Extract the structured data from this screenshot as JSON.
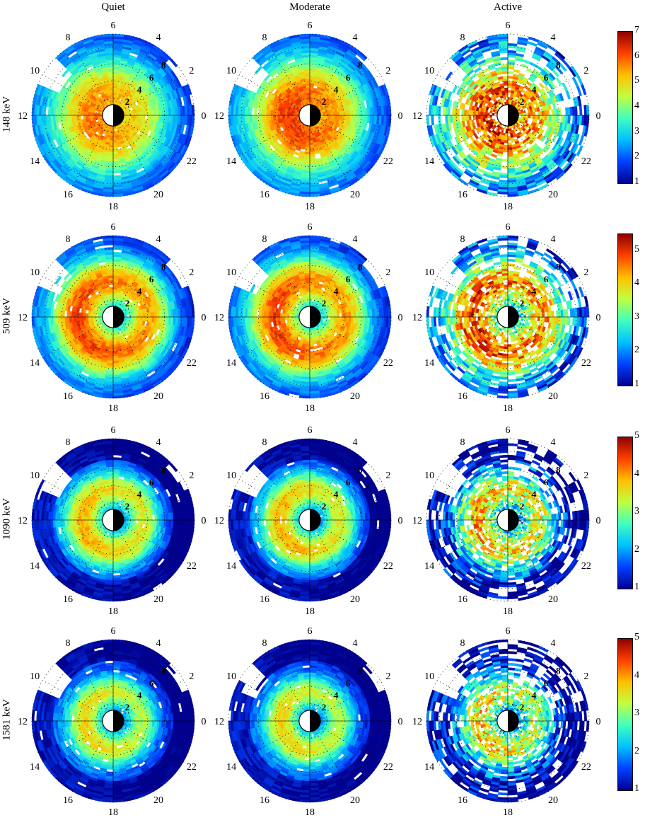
{
  "chart_data": {
    "type": "heatmap",
    "columns": [
      "Quiet",
      "Moderate",
      "Active"
    ],
    "rows": [
      "148 keV",
      "509 keV",
      "1090 keV",
      "1581 keV"
    ],
    "mlt_labels": [
      "6",
      "4",
      "2",
      "0",
      "22",
      "20",
      "18",
      "16",
      "14",
      "12",
      "10",
      "8"
    ],
    "l_labels": [
      "2",
      "4",
      "6",
      "8"
    ],
    "colorbars": [
      {
        "min": 1,
        "max": 7,
        "ticks": [
          "7",
          "6",
          "5",
          "4",
          "3",
          "2",
          "1"
        ]
      },
      {
        "min": 1,
        "max": 5.5,
        "ticks": [
          "5",
          "4",
          "3",
          "2",
          "1"
        ]
      },
      {
        "min": 1,
        "max": 5,
        "ticks": [
          "5",
          "4",
          "3",
          "2",
          "1"
        ]
      },
      {
        "min": 1,
        "max": 5,
        "ticks": [
          "5",
          "4",
          "3",
          "2",
          "1"
        ]
      }
    ],
    "colormap": [
      "#00008f",
      "#0040ff",
      "#00c0ff",
      "#40ffbf",
      "#c0ff40",
      "#ffc000",
      "#ff4000",
      "#8f0000"
    ]
  }
}
